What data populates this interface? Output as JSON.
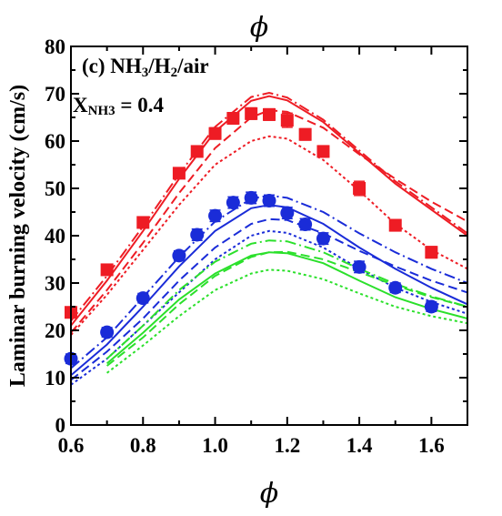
{
  "chart_data": {
    "type": "scatter",
    "top_xlabel": "ϕ",
    "xlabel": "ϕ",
    "ylabel": "Laminar burning velocity (cm/s)",
    "annotation": {
      "line1_pre": "(c) NH",
      "line1_sub1": "3",
      "line1_mid": "/H",
      "line1_sub2": "2",
      "line1_post": "/air",
      "line2_pre": "X",
      "line2_sub": "NH3",
      "line2_post": " = 0.4"
    },
    "xlim": [
      0.6,
      1.7
    ],
    "ylim": [
      0,
      80
    ],
    "xticks": [
      "0.6",
      "0.8",
      "1.0",
      "1.2",
      "1.4",
      "1.6"
    ],
    "yticks": [
      "0",
      "10",
      "20",
      "30",
      "40",
      "50",
      "60",
      "70",
      "80"
    ],
    "colors": {
      "red": "#ee1c24",
      "blue": "#1a2cd8",
      "green": "#2be02b"
    },
    "series": [
      {
        "color": "red",
        "marker": "square",
        "x": [
          0.6,
          0.7,
          0.8,
          0.9,
          0.95,
          1.0,
          1.05,
          1.1,
          1.15,
          1.2,
          1.25,
          1.3,
          1.4,
          1.5,
          1.6
        ],
        "y": [
          23.8,
          32.8,
          42.8,
          53.2,
          57.8,
          61.6,
          64.8,
          65.8,
          65.6,
          64.4,
          61.4,
          57.8,
          50.0,
          42.2,
          36.5
        ],
        "err": [
          0.8,
          1.0,
          1.0,
          1.0,
          1.0,
          1.2,
          1.2,
          1.2,
          1.2,
          1.5,
          1.2,
          1.2,
          1.5,
          1.2,
          1.2
        ]
      },
      {
        "color": "blue",
        "marker": "circle",
        "x": [
          0.6,
          0.7,
          0.8,
          0.9,
          0.95,
          1.0,
          1.05,
          1.1,
          1.15,
          1.2,
          1.25,
          1.3,
          1.4,
          1.5,
          1.6
        ],
        "y": [
          14.0,
          19.6,
          26.8,
          35.8,
          40.2,
          44.2,
          47.0,
          48.0,
          47.4,
          44.8,
          42.4,
          39.4,
          33.4,
          29.0,
          25.0
        ],
        "err": [
          1.0,
          1.0,
          1.0,
          1.0,
          1.2,
          1.2,
          1.2,
          1.2,
          1.2,
          1.2,
          1.2,
          1.2,
          1.2,
          1.0,
          1.0
        ]
      }
    ],
    "lines": [
      {
        "color": "red",
        "dash": "solid",
        "x": [
          0.6,
          0.7,
          0.8,
          0.9,
          1.0,
          1.1,
          1.15,
          1.2,
          1.3,
          1.4,
          1.5,
          1.6,
          1.7
        ],
        "y": [
          21,
          30.5,
          41,
          52,
          62,
          68.5,
          69.5,
          68.6,
          64,
          57.5,
          51,
          45.5,
          40
        ]
      },
      {
        "color": "red",
        "dash": "dashdot",
        "x": [
          0.6,
          0.7,
          0.8,
          0.9,
          1.0,
          1.1,
          1.15,
          1.2,
          1.3,
          1.4,
          1.5,
          1.6,
          1.7
        ],
        "y": [
          22,
          31.5,
          42,
          53,
          63,
          69.3,
          70.2,
          69.2,
          64.5,
          58,
          51.5,
          46,
          40.5
        ]
      },
      {
        "color": "red",
        "dash": "dashed",
        "x": [
          0.6,
          0.7,
          0.8,
          0.9,
          1.0,
          1.1,
          1.15,
          1.2,
          1.3,
          1.4,
          1.5,
          1.6,
          1.7
        ],
        "y": [
          19.5,
          28.5,
          38.5,
          49,
          58.5,
          65,
          66.5,
          66.2,
          62.8,
          57.2,
          52,
          47.2,
          43
        ]
      },
      {
        "color": "red",
        "dash": "dotted",
        "x": [
          0.6,
          0.7,
          0.8,
          0.9,
          1.0,
          1.1,
          1.15,
          1.2,
          1.3,
          1.4,
          1.5,
          1.6,
          1.7
        ],
        "y": [
          19,
          27.5,
          37,
          46.5,
          55,
          60,
          61,
          60.5,
          56,
          49.5,
          42.5,
          37,
          33
        ]
      },
      {
        "color": "blue",
        "dash": "solid",
        "x": [
          0.6,
          0.7,
          0.8,
          0.9,
          1.0,
          1.1,
          1.15,
          1.2,
          1.3,
          1.4,
          1.5,
          1.6,
          1.7
        ],
        "y": [
          10.5,
          17,
          25,
          33.5,
          41,
          45.8,
          46.5,
          46,
          42.5,
          37.5,
          33,
          29,
          25.5
        ]
      },
      {
        "color": "blue",
        "dash": "dashdot",
        "x": [
          0.6,
          0.7,
          0.8,
          0.9,
          1.0,
          1.1,
          1.15,
          1.2,
          1.3,
          1.4,
          1.5,
          1.6,
          1.7
        ],
        "y": [
          12,
          18.5,
          27,
          35.5,
          43,
          47.8,
          48.5,
          48,
          45,
          40.5,
          36.5,
          33,
          30
        ]
      },
      {
        "color": "blue",
        "dash": "dashed",
        "x": [
          0.6,
          0.7,
          0.8,
          0.9,
          1.0,
          1.1,
          1.15,
          1.2,
          1.3,
          1.4,
          1.5,
          1.6,
          1.7
        ],
        "y": [
          9.5,
          15.5,
          22.5,
          30.5,
          37.5,
          42.5,
          43.5,
          43.3,
          40.5,
          36.8,
          33.5,
          30.5,
          28
        ]
      },
      {
        "color": "blue",
        "dash": "dotted",
        "x": [
          0.6,
          0.7,
          0.8,
          0.9,
          1.0,
          1.1,
          1.15,
          1.2,
          1.3,
          1.4,
          1.5,
          1.6,
          1.7
        ],
        "y": [
          8.5,
          14,
          21,
          28,
          35,
          40,
          41,
          40.6,
          37.5,
          33,
          29,
          26,
          23.5
        ]
      },
      {
        "color": "green",
        "dash": "solid",
        "x": [
          0.7,
          0.8,
          0.9,
          1.0,
          1.1,
          1.15,
          1.2,
          1.3,
          1.4,
          1.5,
          1.6,
          1.7
        ],
        "y": [
          13,
          19.5,
          26.5,
          32,
          35.8,
          36.5,
          36.3,
          34.2,
          30.5,
          27,
          24.5,
          22.5
        ]
      },
      {
        "color": "green",
        "dash": "dashdot",
        "x": [
          0.7,
          0.8,
          0.9,
          1.0,
          1.1,
          1.15,
          1.2,
          1.3,
          1.4,
          1.5,
          1.6,
          1.7
        ],
        "y": [
          14,
          21,
          28.5,
          34.5,
          38.3,
          39,
          38.8,
          36.5,
          33,
          29.8,
          27.2,
          25
        ]
      },
      {
        "color": "green",
        "dash": "dashed",
        "x": [
          0.7,
          0.8,
          0.9,
          1.0,
          1.1,
          1.15,
          1.2,
          1.3,
          1.4,
          1.5,
          1.6,
          1.7
        ],
        "y": [
          12.5,
          18.5,
          25.5,
          31.5,
          35.5,
          36.5,
          36.6,
          35,
          32.3,
          29.5,
          27,
          25
        ]
      },
      {
        "color": "green",
        "dash": "dotted",
        "x": [
          0.7,
          0.8,
          0.9,
          1.0,
          1.1,
          1.15,
          1.2,
          1.3,
          1.4,
          1.5,
          1.6,
          1.7
        ],
        "y": [
          11,
          16.8,
          23,
          28.5,
          32,
          32.8,
          32.6,
          30.8,
          27.8,
          25,
          23,
          21.5
        ]
      }
    ]
  }
}
